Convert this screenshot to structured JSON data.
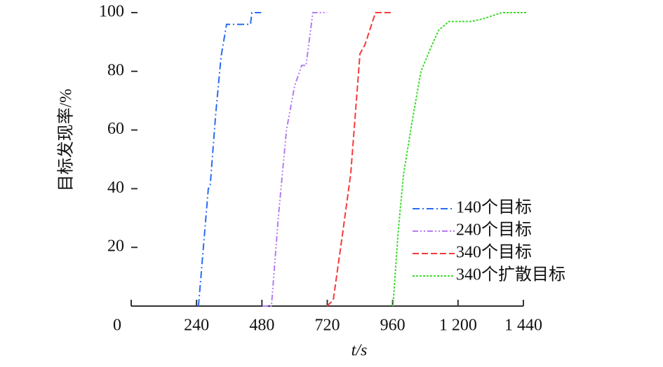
{
  "chart_data": {
    "type": "line",
    "x_label": "t/s",
    "y_label": "目标发现率/%",
    "xlim": [
      0,
      1440
    ],
    "ylim": [
      0,
      100
    ],
    "xticks": [
      0,
      240,
      480,
      720,
      960,
      {
        "value": 1200,
        "label": "1 200"
      },
      {
        "value": 1440,
        "label": "1 440"
      }
    ],
    "yticks": [
      20,
      40,
      60,
      80,
      100
    ],
    "legend": "lower right",
    "series": [
      {
        "name": "140个目标",
        "color": "#2a6bf2",
        "dash": "10 4 2 4",
        "x": [
          247,
          265,
          283,
          290,
          310,
          330,
          350,
          438,
          443,
          477
        ],
        "values": [
          0,
          20,
          40,
          41,
          65,
          85,
          96,
          96,
          100,
          100
        ]
      },
      {
        "name": "240个目标",
        "color": "#b47cf0",
        "dash": "8 3 2 3 2 3",
        "x": [
          482,
          515,
          540,
          570,
          600,
          626,
          642,
          660,
          667,
          719
        ],
        "values": [
          0,
          0,
          30,
          60,
          75,
          82,
          82,
          95,
          100,
          100
        ]
      },
      {
        "name": "340个目标",
        "color": "#f53a3a",
        "dash": "9 4",
        "x": [
          719,
          742,
          775,
          806,
          840,
          858,
          897,
          961
        ],
        "values": [
          0,
          2,
          24,
          45,
          86,
          89,
          100,
          100
        ]
      },
      {
        "name": "340个扩散目标",
        "color": "#3fdc2f",
        "dash": "3 2",
        "x": [
          961,
          980,
          1000,
          1030,
          1064,
          1100,
          1129,
          1167,
          1250,
          1296,
          1361,
          1456
        ],
        "values": [
          0,
          25,
          45,
          62,
          80,
          88,
          94,
          97,
          97,
          98,
          100,
          100
        ]
      }
    ]
  }
}
